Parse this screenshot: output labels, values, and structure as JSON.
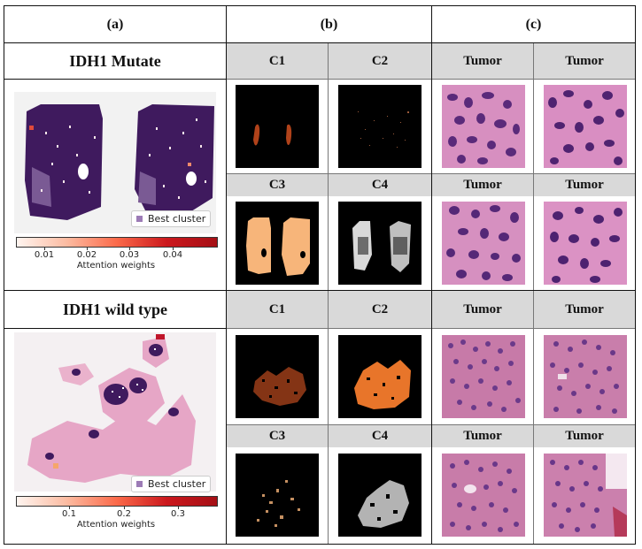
{
  "columns": {
    "a": "(a)",
    "b": "(b)",
    "c": "(c)"
  },
  "rows": [
    {
      "title": "IDH1 Mutate",
      "legend_label": "Best cluster",
      "colorbar": {
        "ticks": [
          "0.01",
          "0.02",
          "0.03",
          "0.04"
        ],
        "label": "Attention weights"
      },
      "clusters": [
        "C1",
        "C2",
        "C3",
        "C4"
      ],
      "tiles": [
        "Tumor",
        "Tumor",
        "Tumor",
        "Tumor"
      ]
    },
    {
      "title": "IDH1 wild type",
      "legend_label": "Best cluster",
      "colorbar": {
        "ticks": [
          "0.1",
          "0.2",
          "0.3"
        ],
        "label": "Attention weights"
      },
      "clusters": [
        "C1",
        "C2",
        "C3",
        "C4"
      ],
      "tiles": [
        "Tumor",
        "Tumor",
        "Tumor",
        "Tumor"
      ]
    }
  ],
  "colors": {
    "header_gray": "#d9d9d9",
    "tissue_purple": "#3f1a5e",
    "tissue_pink": "#e6a6c6",
    "cluster_orange": "#e8752a",
    "cluster_peach": "#f7b57a"
  }
}
